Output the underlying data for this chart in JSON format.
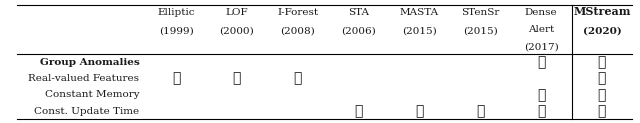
{
  "columns": [
    {
      "name": "Elliptic",
      "year": "(1999)"
    },
    {
      "name": "LOF",
      "year": "(2000)"
    },
    {
      "name": "I-Forest",
      "year": "(2008)"
    },
    {
      "name": "STA",
      "year": "(2006)"
    },
    {
      "name": "MASTA",
      "year": "(2015)"
    },
    {
      "name": "STenSr",
      "year": "(2015)"
    },
    {
      "name": "DenseAlert",
      "year": "(2017)"
    },
    {
      "name": "MStream",
      "year": "(2020)"
    }
  ],
  "rows": [
    {
      "label": "Group Anomalies",
      "bold": true,
      "checks": [
        false,
        false,
        false,
        false,
        false,
        false,
        true,
        true
      ]
    },
    {
      "label": "Real-valued Features",
      "bold": false,
      "checks": [
        true,
        true,
        true,
        false,
        false,
        false,
        false,
        true
      ]
    },
    {
      "label": "Constant Memory",
      "bold": false,
      "checks": [
        false,
        false,
        false,
        false,
        false,
        false,
        true,
        true
      ]
    },
    {
      "label": "Const. Update Time",
      "bold": false,
      "checks": [
        false,
        false,
        false,
        true,
        true,
        true,
        true,
        true
      ]
    }
  ],
  "dense_alert_col": 6,
  "mstream_col": 7,
  "bg_color": "#ffffff",
  "text_color": "#1a1a1a",
  "check_color": "#1a1a1a",
  "header_line_color": "#000000",
  "col_header_fontsize": 7.5,
  "row_label_fontsize": 7.5,
  "check_fontsize": 10
}
